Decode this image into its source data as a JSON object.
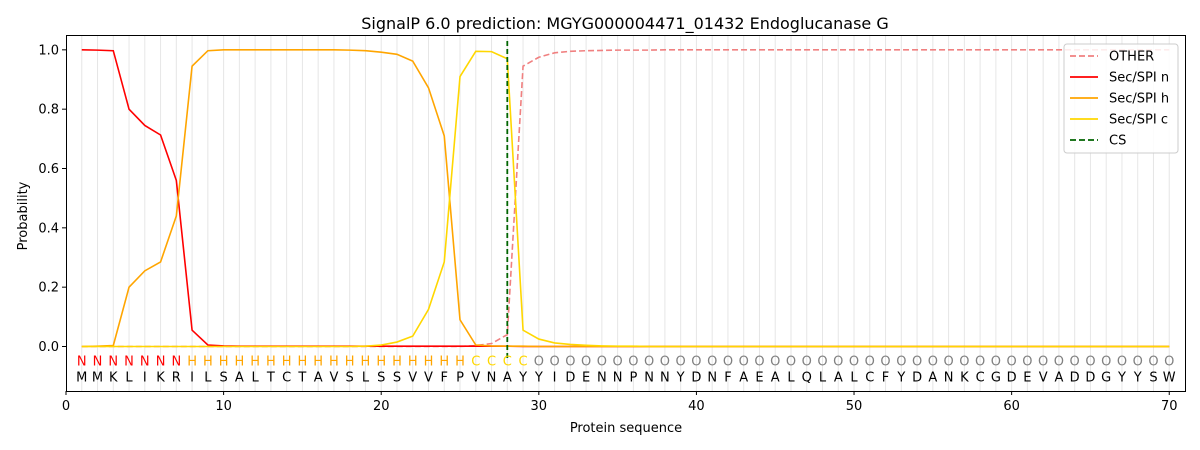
{
  "chart_data": {
    "type": "line",
    "title": "SignalP 6.0 prediction: MGYG000004471_01432 Endoglucanase G",
    "xlabel": "Protein sequence",
    "ylabel": "Probability",
    "xlim": [
      0,
      71
    ],
    "ylim": [
      -0.15,
      1.05
    ],
    "x_ticks": [
      0,
      10,
      20,
      30,
      40,
      50,
      60,
      70
    ],
    "y_ticks": [
      0.0,
      0.2,
      0.4,
      0.6,
      0.8,
      1.0
    ],
    "x_tick_labels": [
      "0",
      "10",
      "20",
      "30",
      "40",
      "50",
      "60",
      "70"
    ],
    "y_tick_labels": [
      "0.0",
      "0.2",
      "0.4",
      "0.6",
      "0.8",
      "1.0"
    ],
    "grid": "vertical",
    "legend_position": "top-right",
    "sequence": "MMKLIKRILSALTCTAVSLSSVVFPVNAYYIDENNPNNYDNFAEALQLALCFYDANKCGDEVADDGYYSW",
    "labels": "NNNNNNNHHHHHHHHHHHHHHHHHHCCCCOOOOOOOOOOOOOOOOOOOOOOOOOOOOOOOOOOOOOOOOOOO",
    "label_colors": {
      "N": "#ff0000",
      "H": "#ffa500",
      "C": "#ffd700",
      "O": "#808080"
    },
    "x": [
      1,
      2,
      3,
      4,
      5,
      6,
      7,
      8,
      9,
      10,
      11,
      12,
      13,
      14,
      15,
      16,
      17,
      18,
      19,
      20,
      21,
      22,
      23,
      24,
      25,
      26,
      27,
      28,
      29,
      30,
      31,
      32,
      33,
      34,
      35,
      36,
      37,
      38,
      39,
      40,
      41,
      42,
      43,
      44,
      45,
      46,
      47,
      48,
      49,
      50,
      51,
      52,
      53,
      54,
      55,
      56,
      57,
      58,
      59,
      60,
      61,
      62,
      63,
      64,
      65,
      66,
      67,
      68,
      69,
      70
    ],
    "series": [
      {
        "name": "OTHER",
        "color": "#f08080",
        "dash": true,
        "values": [
          0,
          0,
          0,
          0,
          0,
          0,
          0,
          0,
          0,
          0,
          0,
          0,
          0,
          0,
          0,
          0,
          0,
          0,
          0,
          0,
          0,
          0,
          0,
          0,
          0,
          0.003,
          0.01,
          0.04,
          0.945,
          0.975,
          0.99,
          0.995,
          0.997,
          0.998,
          0.999,
          0.999,
          0.999,
          1,
          1,
          1,
          1,
          1,
          1,
          1,
          1,
          1,
          1,
          1,
          1,
          1,
          1,
          1,
          1,
          1,
          1,
          1,
          1,
          1,
          1,
          1,
          1,
          1,
          1,
          1,
          1,
          1,
          1,
          1,
          1,
          1
        ]
      },
      {
        "name": "Sec/SPI n",
        "color": "#ff0000",
        "dash": false,
        "values": [
          1.0,
          0.999,
          0.997,
          0.8,
          0.745,
          0.713,
          0.56,
          0.055,
          0.005,
          0.002,
          0.001,
          0.001,
          0.001,
          0.001,
          0.001,
          0.001,
          0.001,
          0.001,
          0.001,
          0.001,
          0.001,
          0.001,
          0.001,
          0.001,
          0.001,
          0.001,
          0.001,
          0.001,
          0,
          0,
          0,
          0,
          0,
          0,
          0,
          0,
          0,
          0,
          0,
          0,
          0,
          0,
          0,
          0,
          0,
          0,
          0,
          0,
          0,
          0,
          0,
          0,
          0,
          0,
          0,
          0,
          0,
          0,
          0,
          0,
          0,
          0,
          0,
          0,
          0,
          0,
          0,
          0,
          0,
          0
        ]
      },
      {
        "name": "Sec/SPI h",
        "color": "#ffa500",
        "dash": false,
        "values": [
          0,
          0.001,
          0.003,
          0.2,
          0.255,
          0.285,
          0.44,
          0.945,
          0.997,
          1.0,
          1.0,
          1.0,
          1.0,
          1.0,
          1.0,
          1.0,
          1.0,
          0.999,
          0.997,
          0.992,
          0.985,
          0.962,
          0.872,
          0.71,
          0.09,
          0.005,
          0.002,
          0.001,
          0.001,
          0,
          0,
          0,
          0,
          0,
          0,
          0,
          0,
          0,
          0,
          0,
          0,
          0,
          0,
          0,
          0,
          0,
          0,
          0,
          0,
          0,
          0,
          0,
          0,
          0,
          0,
          0,
          0,
          0,
          0,
          0,
          0,
          0,
          0,
          0,
          0,
          0,
          0,
          0,
          0,
          0
        ]
      },
      {
        "name": "Sec/SPI c",
        "color": "#ffd700",
        "dash": false,
        "values": [
          0,
          0,
          0,
          0,
          0,
          0,
          0,
          0,
          0,
          0,
          0,
          0,
          0,
          0,
          0,
          0,
          0,
          0,
          0.001,
          0.005,
          0.015,
          0.035,
          0.125,
          0.285,
          0.91,
          0.995,
          0.994,
          0.97,
          0.055,
          0.025,
          0.012,
          0.007,
          0.004,
          0.002,
          0.001,
          0.001,
          0,
          0,
          0,
          0,
          0,
          0,
          0,
          0,
          0,
          0,
          0,
          0,
          0,
          0,
          0,
          0,
          0,
          0,
          0,
          0,
          0,
          0,
          0,
          0,
          0,
          0,
          0,
          0,
          0,
          0,
          0,
          0,
          0,
          0
        ]
      }
    ],
    "cs_line": {
      "name": "CS",
      "x": 28,
      "color": "#006400"
    },
    "legend": [
      "OTHER",
      "Sec/SPI n",
      "Sec/SPI h",
      "Sec/SPI c",
      "CS"
    ]
  }
}
